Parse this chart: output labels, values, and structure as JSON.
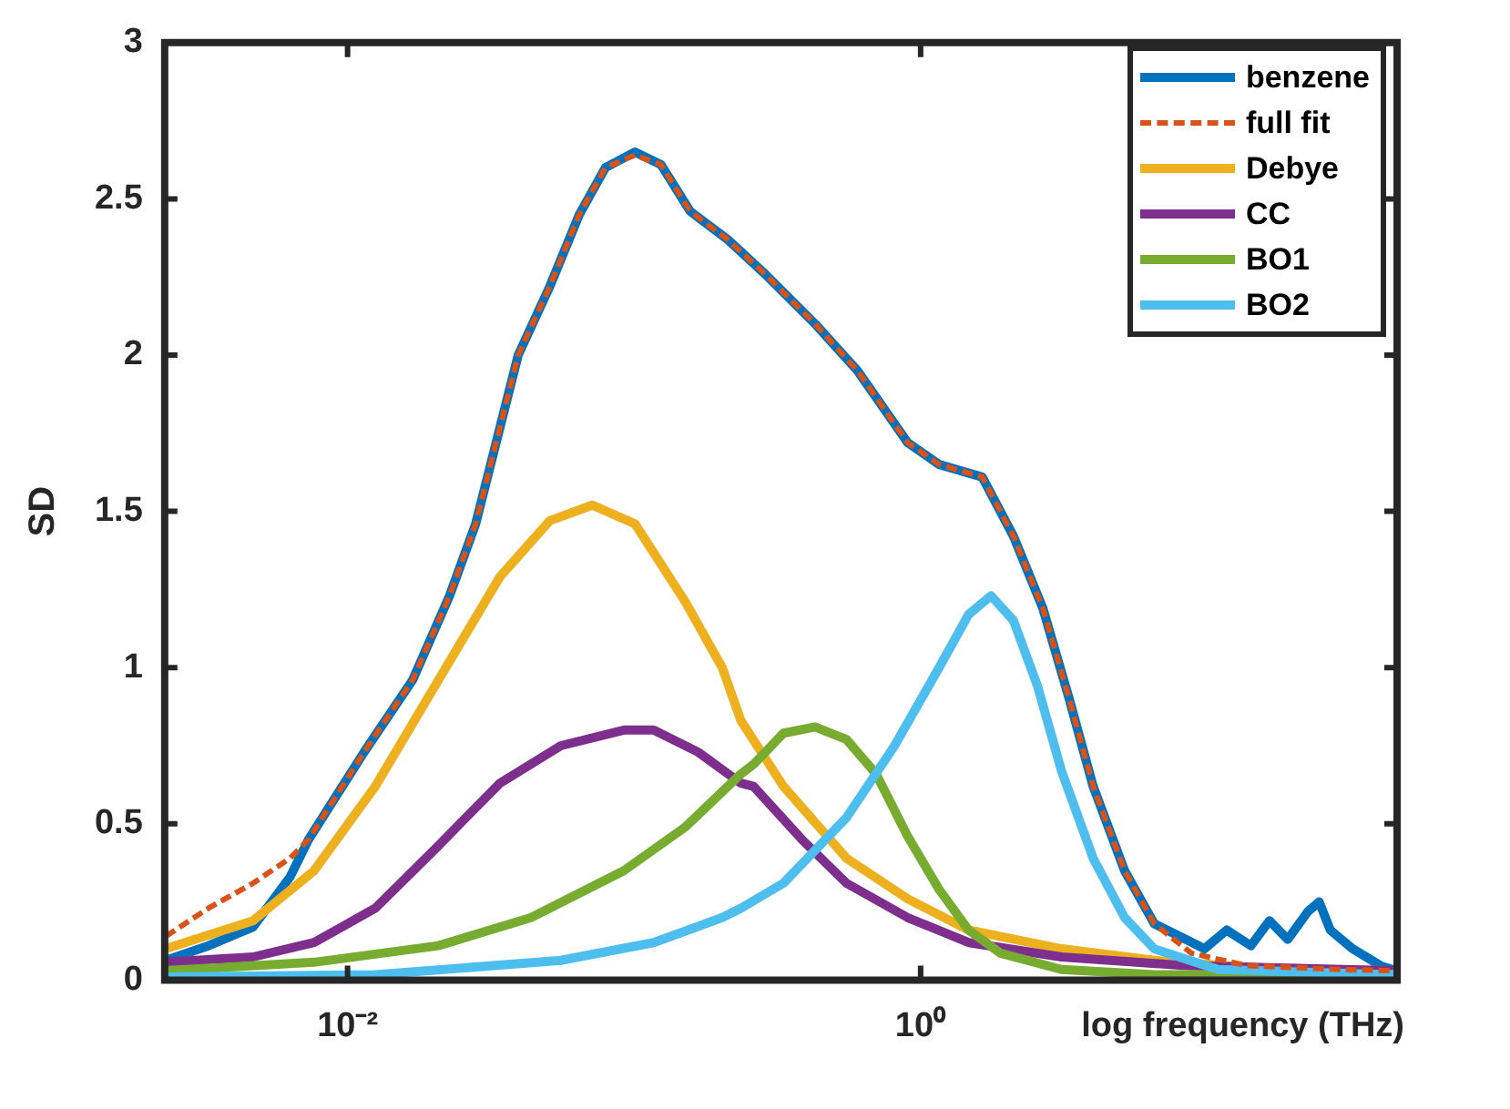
{
  "chart_data": {
    "type": "line",
    "xlabel": "log frequency (THz)",
    "ylabel": "SD",
    "log": "x",
    "xlim": [
      0.0023,
      46
    ],
    "xticks": [
      {
        "value": 0.01,
        "label": "10⁻²"
      },
      {
        "value": 1,
        "label": "10⁰"
      }
    ],
    "ylim": [
      0,
      3
    ],
    "yticks": [
      0,
      0.5,
      1,
      1.5,
      2,
      2.5,
      3
    ],
    "grid": false,
    "legend": "top right",
    "marker": "none",
    "series": [
      {
        "name": "benzene",
        "color": "#0072bd",
        "line_style": "solid",
        "x": [
          0.00232,
          0.00327,
          0.00468,
          0.0063,
          0.00731,
          0.01143,
          0.01686,
          0.0227,
          0.028,
          0.0394,
          0.0508,
          0.0644,
          0.0794,
          0.1007,
          0.124,
          0.157,
          0.212,
          0.286,
          0.428,
          0.602,
          0.901,
          1.16,
          1.64,
          2.11,
          2.67,
          3.3,
          4.0,
          5.15,
          6.54,
          8.43,
          9.78,
          11.7,
          14.2,
          16.5,
          19.1,
          22.5,
          24.6,
          26.9,
          32.2,
          40.3,
          45.4
        ],
        "values": [
          0.063,
          0.11,
          0.17,
          0.33,
          0.45,
          0.73,
          0.96,
          1.23,
          1.46,
          2.0,
          2.22,
          2.45,
          2.6,
          2.65,
          2.61,
          2.46,
          2.37,
          2.26,
          2.1,
          1.95,
          1.72,
          1.65,
          1.61,
          1.42,
          1.19,
          0.9,
          0.62,
          0.35,
          0.18,
          0.13,
          0.1,
          0.16,
          0.11,
          0.19,
          0.13,
          0.22,
          0.25,
          0.16,
          0.1,
          0.046,
          0.03
        ]
      },
      {
        "name": "full fit",
        "color": "#d95319",
        "line_style": "dashed",
        "x": [
          0.00232,
          0.00327,
          0.00468,
          0.0063,
          0.00731,
          0.01143,
          0.01686,
          0.0227,
          0.028,
          0.0394,
          0.0508,
          0.0644,
          0.0794,
          0.1007,
          0.124,
          0.157,
          0.212,
          0.286,
          0.428,
          0.602,
          0.901,
          1.16,
          1.64,
          2.11,
          2.67,
          3.3,
          4.0,
          5.15,
          6.54,
          8.81,
          13.8,
          29.0,
          45.4
        ],
        "values": [
          0.14,
          0.23,
          0.31,
          0.39,
          0.45,
          0.73,
          0.96,
          1.23,
          1.46,
          2.0,
          2.22,
          2.45,
          2.6,
          2.64,
          2.61,
          2.46,
          2.37,
          2.26,
          2.1,
          1.95,
          1.72,
          1.65,
          1.61,
          1.42,
          1.19,
          0.9,
          0.62,
          0.35,
          0.18,
          0.086,
          0.046,
          0.034,
          0.03
        ]
      },
      {
        "name": "Debye",
        "color": "#edb120",
        "line_style": "solid",
        "x": [
          0.00232,
          0.00468,
          0.00764,
          0.0125,
          0.02075,
          0.034,
          0.0508,
          0.0715,
          0.1007,
          0.151,
          0.203,
          0.236,
          0.332,
          0.551,
          0.901,
          1.47,
          3.1,
          6.54,
          17.7,
          45.4
        ],
        "values": [
          0.1,
          0.19,
          0.35,
          0.62,
          0.96,
          1.29,
          1.47,
          1.52,
          1.46,
          1.21,
          1.0,
          0.83,
          0.62,
          0.39,
          0.26,
          0.16,
          0.1,
          0.063,
          0.034,
          0.03
        ]
      },
      {
        "name": "CC",
        "color": "#7e2f8e",
        "line_style": "solid",
        "x": [
          0.00232,
          0.00468,
          0.00764,
          0.0125,
          0.02075,
          0.034,
          0.0555,
          0.0921,
          0.117,
          0.167,
          0.236,
          0.261,
          0.385,
          0.551,
          0.901,
          1.47,
          3.1,
          8.43,
          45.4
        ],
        "values": [
          0.057,
          0.074,
          0.12,
          0.23,
          0.43,
          0.63,
          0.75,
          0.8,
          0.8,
          0.73,
          0.63,
          0.62,
          0.45,
          0.31,
          0.2,
          0.12,
          0.074,
          0.046,
          0.03
        ]
      },
      {
        "name": "BO1",
        "color": "#77ac30",
        "line_style": "solid",
        "x": [
          0.00232,
          0.00764,
          0.02075,
          0.0437,
          0.0921,
          0.151,
          0.236,
          0.261,
          0.332,
          0.428,
          0.551,
          0.699,
          0.901,
          1.16,
          1.47,
          1.9,
          3.1,
          6.54,
          45.4
        ],
        "values": [
          0.03,
          0.057,
          0.11,
          0.2,
          0.35,
          0.49,
          0.66,
          0.69,
          0.79,
          0.81,
          0.77,
          0.66,
          0.46,
          0.29,
          0.16,
          0.086,
          0.034,
          0.017,
          0.017
        ]
      },
      {
        "name": "BO2",
        "color": "#4dbeee",
        "line_style": "solid",
        "x": [
          0.00232,
          0.0125,
          0.0555,
          0.117,
          0.203,
          0.236,
          0.332,
          0.551,
          0.811,
          1.16,
          1.47,
          1.76,
          2.11,
          2.56,
          3.1,
          4.0,
          5.15,
          6.54,
          10.9,
          45.4
        ],
        "values": [
          0.01,
          0.017,
          0.063,
          0.12,
          0.2,
          0.23,
          0.31,
          0.52,
          0.75,
          1.0,
          1.17,
          1.23,
          1.15,
          0.94,
          0.67,
          0.39,
          0.2,
          0.1,
          0.034,
          0.017
        ]
      }
    ]
  }
}
